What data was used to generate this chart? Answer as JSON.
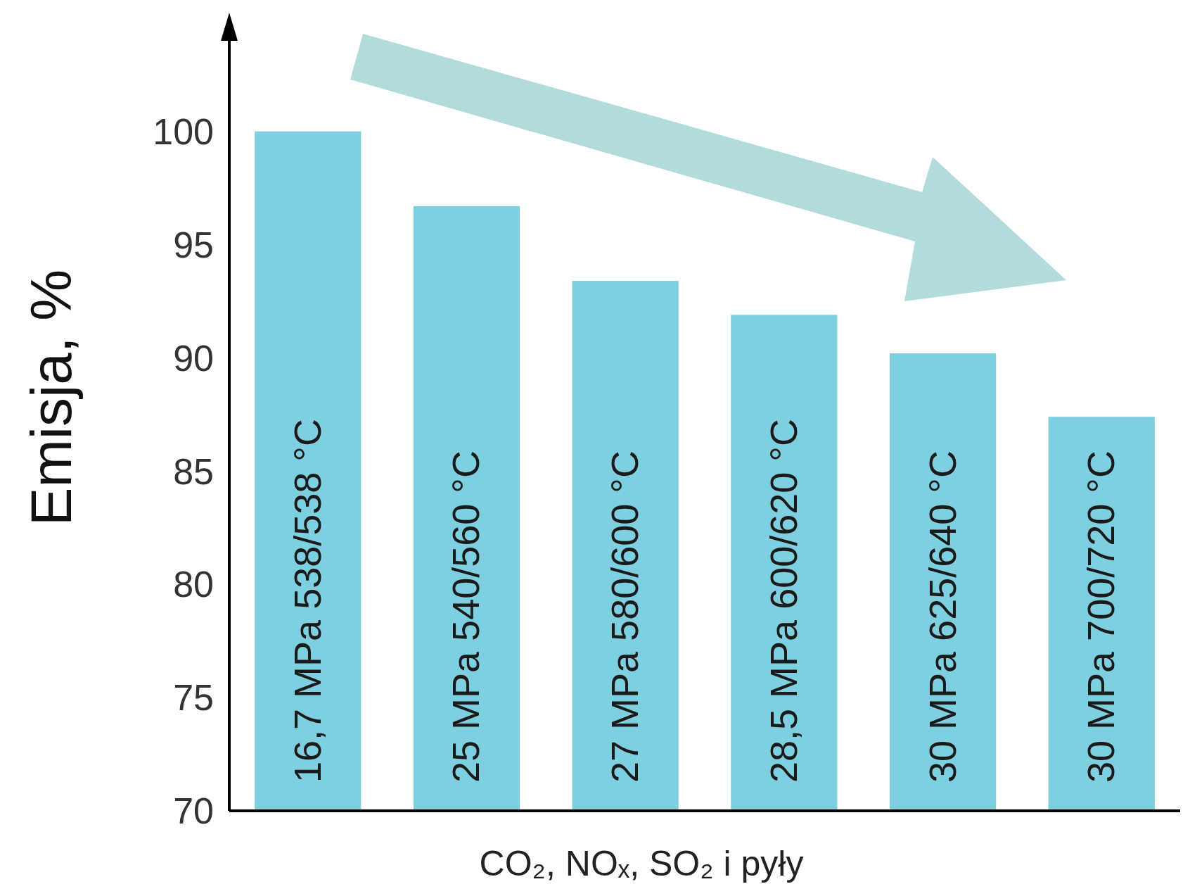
{
  "chart_data": {
    "type": "bar",
    "xlabel": "CO₂, NOₓ, SO₂ i pyły",
    "ylabel": "Emisja, %",
    "categories": [
      "16,7 MPa 538/538 °C",
      "25 MPa 540/560 °C",
      "27 MPa 580/600 °C",
      "28,5 MPa 600/620 °C",
      "30 MPa 625/640 °C",
      "30 MPa 700/720 °C"
    ],
    "values": [
      100,
      96.7,
      93.4,
      91.9,
      90.2,
      87.4
    ],
    "color": "#7ecfe0",
    "ylim": [
      70,
      104
    ],
    "yticks": [
      70,
      75,
      80,
      85,
      90,
      95,
      100
    ],
    "grid": false
  }
}
